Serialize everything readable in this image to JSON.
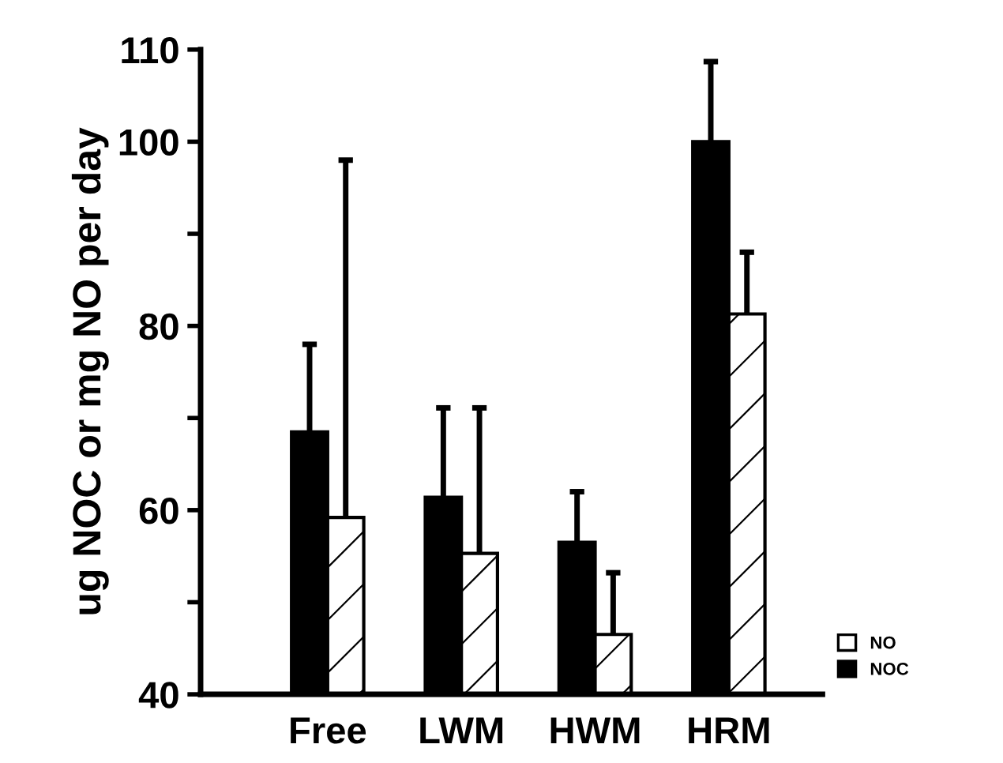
{
  "chart_data": {
    "type": "bar",
    "ylabel": "ug NOC or mg NO per day",
    "categories": [
      "Free",
      "LWM",
      "HWM",
      "HRM"
    ],
    "series": [
      {
        "name": "NOC",
        "color": "#000000",
        "values": [
          68.5,
          61.4,
          56.5,
          100
        ],
        "errors": [
          [
            68.5,
            78.0
          ],
          [
            61.4,
            71.1
          ],
          [
            56.5,
            62.0
          ],
          [
            100,
            108.7
          ]
        ]
      },
      {
        "name": "NO",
        "color": "#ffffff",
        "values": [
          59.2,
          55.3,
          46.5,
          81.3
        ],
        "errors": [
          [
            59.2,
            98.0
          ],
          [
            55.3,
            71.1
          ],
          [
            46.5,
            53.2
          ],
          [
            81.3,
            88.0
          ]
        ]
      }
    ],
    "ylim": [
      40,
      110
    ],
    "yticks": [
      40,
      {
        "value": 50,
        "label": null
      },
      60,
      {
        "value": 70,
        "label": null
      },
      80,
      {
        "value": 90,
        "label": null
      },
      100,
      110
    ],
    "grid": false,
    "legend": "bottom right"
  }
}
